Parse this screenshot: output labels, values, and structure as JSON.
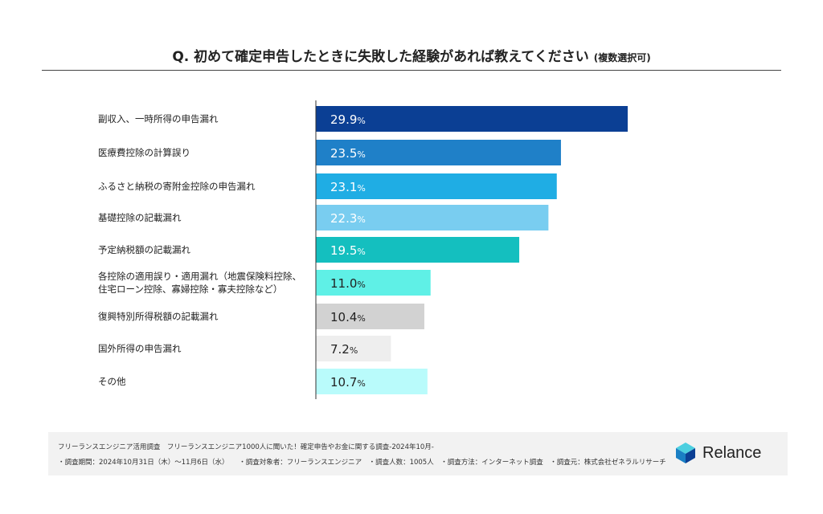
{
  "header": {
    "title": "Q. 初めて確定申告したときに失敗した経験があれば教えてください",
    "subtitle": "(複数選択可)"
  },
  "chart_data": {
    "type": "bar",
    "orientation": "horizontal",
    "categories": [
      "副収入、一時所得の申告漏れ",
      "医療費控除の計算誤り",
      "ふるさと納税の寄附金控除の申告漏れ",
      "基礎控除の記載漏れ",
      "予定納税額の記載漏れ",
      "各控除の適用誤り・適用漏れ（地震保険料控除、|住宅ローン控除、寡婦控除・寡夫控除など）",
      "復興特別所得税額の記載漏れ",
      "国外所得の申告漏れ",
      "その他"
    ],
    "values": [
      29.9,
      23.5,
      23.1,
      22.3,
      19.5,
      11.0,
      10.4,
      7.2,
      10.7
    ],
    "labels": [
      "29.9",
      "23.5",
      "23.1",
      "22.3",
      "19.5",
      "11.0",
      "10.4",
      "7.2",
      "10.7"
    ],
    "unit": "%",
    "colors": [
      "#0b3f94",
      "#1f80c8",
      "#1fade4",
      "#79cdf0",
      "#14bfbf",
      "#5ff0e6",
      "#d2d2d2",
      "#eeeeee",
      "#b9fbfb"
    ],
    "label_colors": [
      "#ffffff",
      "#ffffff",
      "#ffffff",
      "#ffffff",
      "#ffffff",
      "#222222",
      "#222222",
      "#222222",
      "#222222"
    ],
    "xlim": [
      0,
      30
    ],
    "grid": false
  },
  "footer": {
    "line1": "フリーランスエンジニア活用調査　フリーランスエンジニア1000人に聞いた！確定申告やお金に関する調査-2024年10月-",
    "line2": "・調査期間：2024年10月31日（木）～11月6日（水）　　・調査対象者：フリーランスエンジニア　・調査人数：1005人　・調査方法：インターネット調査　・調査元：株式会社ゼネラルリサーチ",
    "logo_text": "Relance"
  }
}
